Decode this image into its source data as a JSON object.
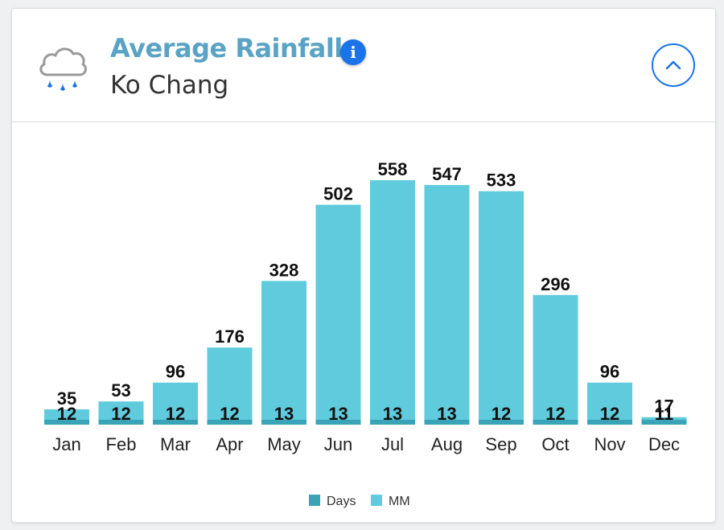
{
  "header": {
    "title": "Average Rainfall",
    "location": "Ko Chang",
    "weather_icon": "rain-cloud-icon",
    "info_icon": "info-icon",
    "collapse_icon": "chevron-up-icon",
    "info_glyph": "i"
  },
  "colors": {
    "title": "#5aa3c5",
    "accent": "#1a73e8",
    "mm": "#5fcbdc",
    "days": "#3aa3b8"
  },
  "chart_data": {
    "type": "bar",
    "title": "Average Rainfall",
    "subtitle": "Ko Chang",
    "xlabel": "",
    "ylabel": "",
    "ylim": [
      0,
      560
    ],
    "grid": false,
    "legend": "bottom-center",
    "categories": [
      "Jan",
      "Feb",
      "Mar",
      "Apr",
      "May",
      "Jun",
      "Jul",
      "Aug",
      "Sep",
      "Oct",
      "Nov",
      "Dec"
    ],
    "series": [
      {
        "name": "Days",
        "values": [
          12,
          12,
          12,
          12,
          13,
          13,
          13,
          13,
          12,
          12,
          12,
          11
        ]
      },
      {
        "name": "MM",
        "values": [
          35,
          53,
          96,
          176,
          328,
          502,
          558,
          547,
          533,
          296,
          96,
          17
        ]
      }
    ]
  }
}
